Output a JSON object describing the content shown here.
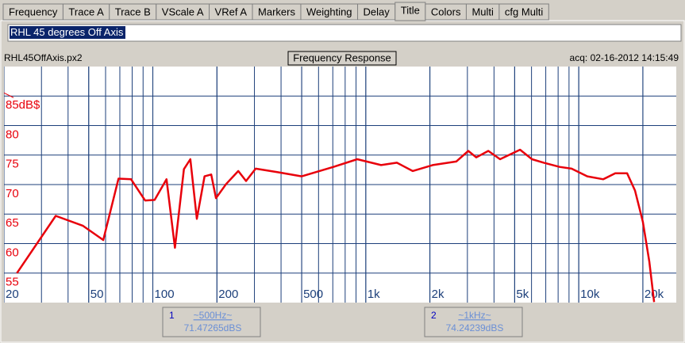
{
  "tabs": [
    "Frequency",
    "Trace A",
    "Trace B",
    "VScale A",
    "VRef A",
    "Markers",
    "Weighting",
    "Delay",
    "Title",
    "Colors",
    "Multi",
    "cfg Multi"
  ],
  "selected_tab": 8,
  "title_input": "RHL 45 degrees Off Axis",
  "file_name": "RHL45OffAxis.px2",
  "acquired": "acq: 02-16-2012 14:15:49",
  "chart_data": {
    "type": "line",
    "title": "Frequency Response",
    "x": [
      23,
      35,
      47,
      58.5,
      69,
      79,
      92,
      102,
      116,
      127,
      140,
      150,
      161,
      175,
      188,
      198,
      221,
      252,
      274,
      304,
      386,
      500,
      705,
      912,
      1180,
      1400,
      1660,
      2060,
      2660,
      3030,
      3300,
      3760,
      4270,
      5300,
      6030,
      6850,
      8130,
      9250,
      10970,
      13030,
      14830,
      16870,
      18370,
      20000,
      21430,
      22580
    ],
    "series": [
      {
        "color": "#e8000b",
        "values": [
          55,
          64.7,
          63,
          60.6,
          71,
          70.9,
          67.3,
          67.4,
          70.9,
          59.3,
          72.6,
          74.3,
          64.2,
          71.4,
          71.7,
          67.7,
          70.1,
          72.3,
          70.6,
          72.7,
          72.1,
          71.4,
          73,
          74.3,
          73.3,
          73.7,
          72.3,
          73.3,
          73.9,
          75.7,
          74.6,
          75.7,
          74.3,
          75.9,
          74.3,
          73.7,
          73,
          72.7,
          71.4,
          70.9,
          71.9,
          71.9,
          69,
          63.7,
          57,
          50.1
        ]
      }
    ],
    "xlim": [
      20,
      28700
    ],
    "ylim": [
      50,
      90
    ],
    "log_x": true,
    "grid": true,
    "xticks": [
      20,
      50,
      100,
      200,
      500,
      {
        "value": 1000,
        "label": "1k"
      },
      {
        "value": 2000,
        "label": "2k"
      },
      {
        "value": 5000,
        "label": "5k"
      },
      {
        "value": 10000,
        "label": "10k"
      },
      {
        "value": 20000,
        "label": "20k"
      }
    ],
    "yticks": [
      55,
      60,
      65,
      70,
      75,
      80,
      {
        "value": 85,
        "label": "85dB$"
      }
    ]
  },
  "markers": [
    {
      "number": 1,
      "frequency": "~500Hz~",
      "level": "71.47265dBS"
    },
    {
      "number": 2,
      "frequency": "~1kHz~",
      "level": "74.24239dBS"
    }
  ]
}
